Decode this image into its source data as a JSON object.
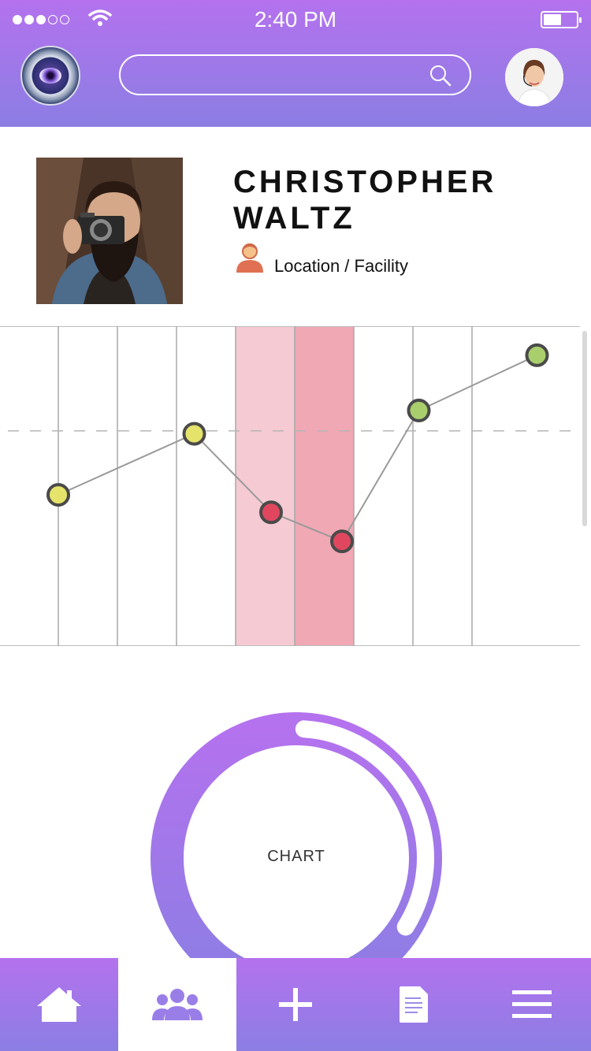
{
  "status_bar": {
    "time": "2:40 PM",
    "signal_filled": 3,
    "signal_total": 5,
    "battery_level": 0.45
  },
  "header": {
    "logo_icon": "eye-seal-logo",
    "search": {
      "placeholder": "",
      "icon": "search-icon"
    },
    "user_avatar": "support-agent-avatar"
  },
  "profile": {
    "name_line1": "CHRISTOPHER",
    "name_line2": "WALTZ",
    "location_icon": "person-icon",
    "location": "Location / Facility"
  },
  "chart_data": [
    {
      "type": "line",
      "title": "",
      "x": [
        1,
        2,
        3,
        4,
        5,
        6,
        7,
        8
      ],
      "series": [
        {
          "values": [
            52,
            73,
            46,
            36,
            81,
            100
          ],
          "x": [
            1,
            3.3,
            4.6,
            5.8,
            7.1,
            9.1
          ],
          "point_colors": [
            "#e5e36a",
            "#e5e36a",
            "#e0475f",
            "#e0475f",
            "#a9cf6d",
            "#a9cf6d"
          ]
        }
      ],
      "ylim": [
        0,
        110
      ],
      "reference_line": 74,
      "highlight_columns": [
        4,
        5
      ],
      "grid": "vertical"
    },
    {
      "type": "pie",
      "center_label": "CHART",
      "progress": 0.33
    }
  ],
  "tabbar": {
    "tabs": [
      {
        "icon": "home-icon",
        "active": false
      },
      {
        "icon": "people-icon",
        "active": true
      },
      {
        "icon": "plus-icon",
        "active": false
      },
      {
        "icon": "document-icon",
        "active": false
      },
      {
        "icon": "menu-icon",
        "active": false
      }
    ]
  },
  "colors": {
    "header_top": "#b472ee",
    "header_bottom": "#8b7ee3",
    "accent": "#a278ec",
    "highlight_light": "#f5cad3",
    "highlight_dark": "#f0a8b4"
  }
}
